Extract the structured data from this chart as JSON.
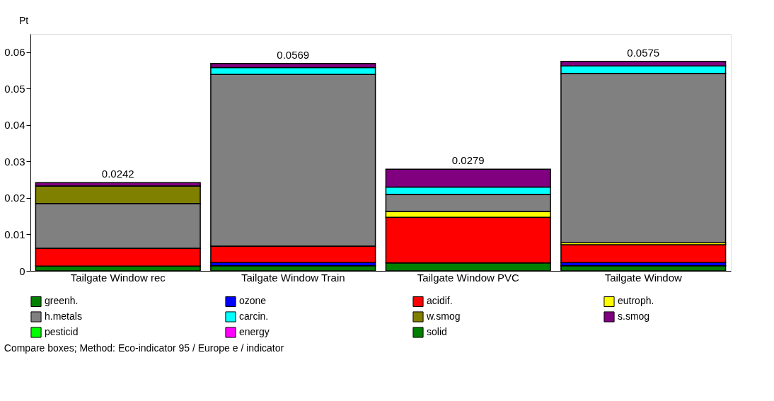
{
  "chart_data": {
    "type": "bar",
    "stacked": true,
    "ylabel": "Pt",
    "categories": [
      "Tailgate Window rec",
      "Tailgate Window Train",
      "Tailgate Window PVC",
      "Tailgate Window"
    ],
    "series": [
      {
        "name": "greenh.",
        "color": "#007f00",
        "values": [
          0.0013,
          0.0014,
          0.0022,
          0.0014
        ]
      },
      {
        "name": "ozone",
        "color": "#0000ff",
        "values": [
          null,
          0.0009,
          null,
          0.0009
        ]
      },
      {
        "name": "acidif.",
        "color": "#ff0000",
        "values": [
          0.0049,
          0.0045,
          0.0125,
          0.0049
        ]
      },
      {
        "name": "eutroph.",
        "color": "#ffff00",
        "values": [
          null,
          null,
          0.0016,
          0.0005
        ]
      },
      {
        "name": "h.metals",
        "color": "#808080",
        "values": [
          0.0123,
          0.0471,
          0.0047,
          0.0465
        ]
      },
      {
        "name": "carcin.",
        "color": "#00ffff",
        "values": [
          null,
          0.0019,
          0.002,
          0.002
        ]
      },
      {
        "name": "w.smog",
        "color": "#808000",
        "values": [
          0.0048,
          null,
          null,
          null
        ]
      },
      {
        "name": "s.smog",
        "color": "#800080",
        "values": [
          0.0009,
          0.0011,
          0.0049,
          0.0013
        ]
      },
      {
        "name": "pesticid",
        "color": "#00ff00",
        "values": [
          null,
          null,
          null,
          null
        ]
      },
      {
        "name": "energy",
        "color": "#ff00ff",
        "values": [
          null,
          null,
          null,
          null
        ]
      },
      {
        "name": "solid",
        "color": "#008000",
        "values": [
          null,
          null,
          null,
          null
        ]
      }
    ],
    "totals": [
      "0.0242",
      "0.0569",
      "0.0279",
      "0.0575"
    ],
    "ylim": [
      0,
      0.065
    ],
    "yticks": [
      0,
      0.01,
      0.02,
      0.03,
      0.04,
      0.05,
      0.06
    ],
    "grid": false,
    "legend": "bottom",
    "annotations": [
      "Compare boxes;  Method: Eco-indicator 95 /  Europe e / indicator"
    ]
  }
}
